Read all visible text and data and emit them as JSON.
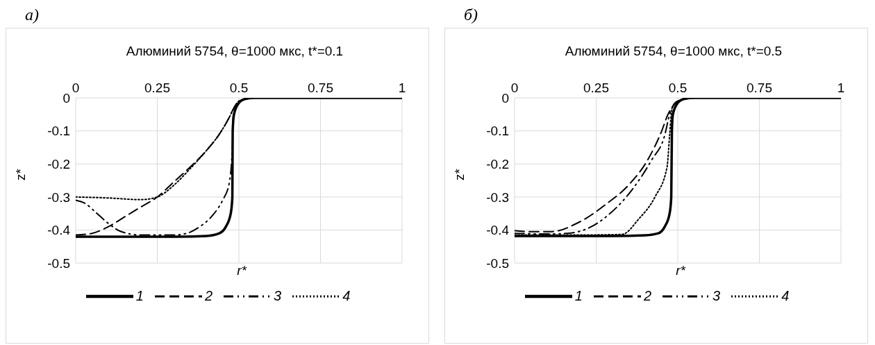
{
  "chart_data": [
    {
      "type": "line",
      "title": "Алюминий 5754, θ=1000 мкс, t*=0.1",
      "xlabel": "r*",
      "ylabel": "z*",
      "annotations": [
        "а)"
      ],
      "xlim": [
        0,
        1
      ],
      "xticks": [
        0,
        0.25,
        0.5,
        0.75,
        1
      ],
      "ylim": [
        -0.5,
        0
      ],
      "yticks": [
        -0.5,
        -0.4,
        -0.3,
        -0.2,
        -0.1,
        0
      ],
      "grid": true,
      "legend": "bottom",
      "series": [
        {
          "name": "1",
          "color": "#000000",
          "line_style": "solid",
          "x": [
            0,
            0.3,
            0.4,
            0.44,
            0.46,
            0.475,
            0.48,
            0.481,
            0.485,
            0.5,
            0.52,
            0.55,
            1
          ],
          "values": [
            -0.42,
            -0.42,
            -0.418,
            -0.41,
            -0.39,
            -0.35,
            -0.3,
            -0.1,
            -0.05,
            -0.015,
            -0.003,
            0,
            0
          ]
        },
        {
          "name": "2",
          "color": "#000000",
          "line_style": "dashed",
          "x": [
            0,
            0.05,
            0.1,
            0.15,
            0.2,
            0.25,
            0.3,
            0.35,
            0.4,
            0.44,
            0.47,
            0.485,
            0.5,
            0.55,
            1
          ],
          "values": [
            -0.415,
            -0.41,
            -0.39,
            -0.36,
            -0.33,
            -0.3,
            -0.255,
            -0.21,
            -0.16,
            -0.11,
            -0.06,
            -0.03,
            -0.01,
            0,
            0
          ]
        },
        {
          "name": "3",
          "color": "#000000",
          "line_style": "dashdot",
          "x": [
            0,
            0.03,
            0.06,
            0.1,
            0.14,
            0.2,
            0.3,
            0.34,
            0.38,
            0.42,
            0.45,
            0.47,
            0.48,
            0.483,
            0.5,
            0.55,
            1
          ],
          "values": [
            -0.31,
            -0.32,
            -0.345,
            -0.38,
            -0.405,
            -0.415,
            -0.415,
            -0.41,
            -0.39,
            -0.355,
            -0.31,
            -0.26,
            -0.15,
            -0.05,
            -0.01,
            0,
            0
          ]
        },
        {
          "name": "4",
          "color": "#000000",
          "line_style": "dotted",
          "x": [
            0,
            0.1,
            0.2,
            0.25,
            0.3,
            0.35,
            0.4,
            0.44,
            0.47,
            0.485,
            0.5,
            0.55,
            1
          ],
          "values": [
            -0.3,
            -0.303,
            -0.308,
            -0.3,
            -0.265,
            -0.215,
            -0.16,
            -0.11,
            -0.06,
            -0.03,
            -0.01,
            0,
            0
          ]
        }
      ]
    },
    {
      "type": "line",
      "title": "Алюминий 5754, θ=1000 мкс, t*=0.5",
      "xlabel": "r*",
      "ylabel": "z*",
      "annotations": [
        "б)"
      ],
      "xlim": [
        0,
        1
      ],
      "xticks": [
        0,
        0.25,
        0.5,
        0.75,
        1
      ],
      "ylim": [
        -0.5,
        0
      ],
      "yticks": [
        -0.5,
        -0.4,
        -0.3,
        -0.2,
        -0.1,
        0
      ],
      "grid": true,
      "legend": "bottom",
      "series": [
        {
          "name": "1",
          "color": "#000000",
          "line_style": "solid",
          "x": [
            0,
            0.3,
            0.4,
            0.44,
            0.46,
            0.475,
            0.48,
            0.482,
            0.485,
            0.5,
            0.52,
            0.55,
            1
          ],
          "values": [
            -0.418,
            -0.418,
            -0.416,
            -0.41,
            -0.39,
            -0.35,
            -0.3,
            -0.1,
            -0.05,
            -0.015,
            -0.003,
            0,
            0
          ]
        },
        {
          "name": "2",
          "color": "#000000",
          "line_style": "dashed",
          "x": [
            0,
            0.05,
            0.11,
            0.2,
            0.28,
            0.35,
            0.41,
            0.45,
            0.47,
            0.485,
            0.5,
            0.55,
            1
          ],
          "values": [
            -0.402,
            -0.405,
            -0.405,
            -0.375,
            -0.322,
            -0.263,
            -0.184,
            -0.102,
            -0.05,
            -0.025,
            -0.01,
            0,
            0
          ]
        },
        {
          "name": "3",
          "color": "#000000",
          "line_style": "dashdot",
          "x": [
            0,
            0.1,
            0.16,
            0.22,
            0.29,
            0.36,
            0.42,
            0.46,
            0.475,
            0.485,
            0.5,
            0.55,
            1
          ],
          "values": [
            -0.41,
            -0.412,
            -0.41,
            -0.397,
            -0.352,
            -0.278,
            -0.188,
            -0.113,
            -0.05,
            -0.025,
            -0.01,
            0,
            0
          ]
        },
        {
          "name": "4",
          "color": "#000000",
          "line_style": "dotted",
          "x": [
            0,
            0.2,
            0.33,
            0.38,
            0.43,
            0.467,
            0.475,
            0.48,
            0.485,
            0.5,
            0.55,
            1
          ],
          "values": [
            -0.415,
            -0.415,
            -0.413,
            -0.367,
            -0.3,
            -0.21,
            -0.113,
            -0.05,
            -0.025,
            -0.01,
            0,
            0
          ]
        }
      ]
    }
  ]
}
